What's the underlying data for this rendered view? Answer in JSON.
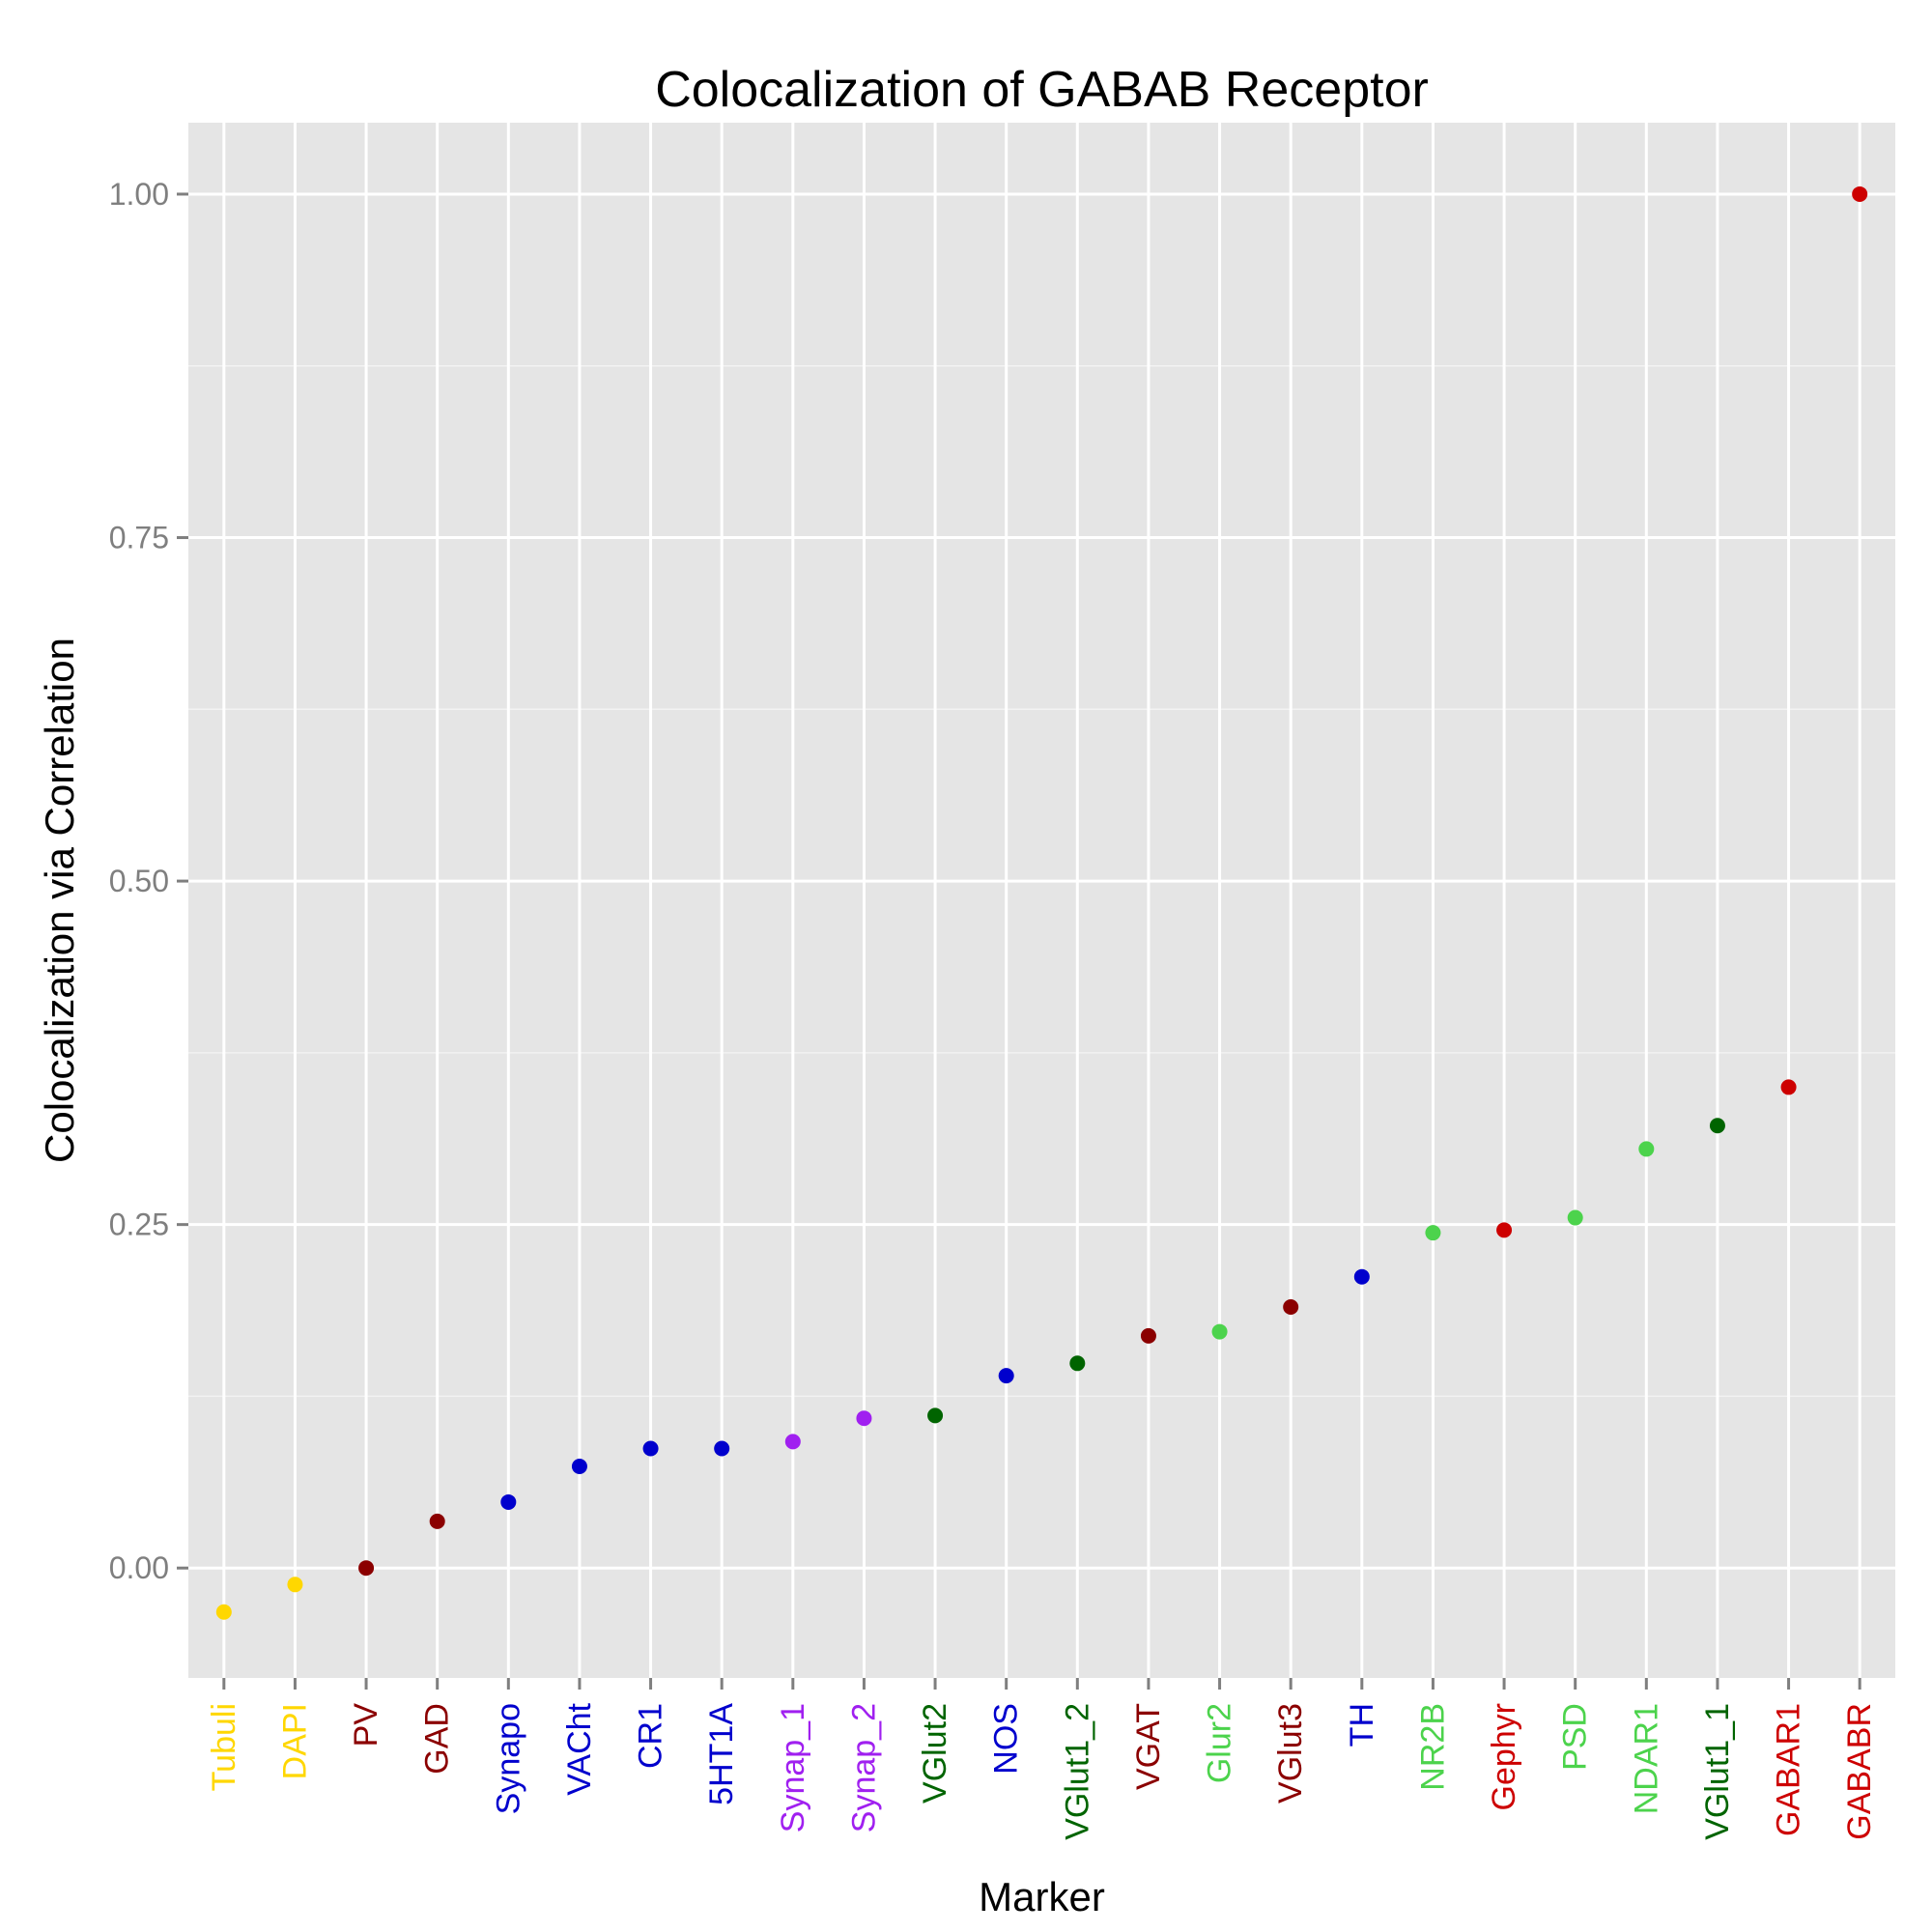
{
  "chart_data": {
    "type": "scatter",
    "title": "Colocalization of GABAB Receptor",
    "xlabel": "Marker",
    "ylabel": "Colocalization via Correlation",
    "ylim": [
      -0.08,
      1.052
    ],
    "yticks": [
      0.0,
      0.25,
      0.5,
      0.75,
      1.0
    ],
    "ytick_labels": [
      "0.00",
      "0.25",
      "0.50",
      "0.75",
      "1.00"
    ],
    "grid": true,
    "categories": [
      "Tubuli",
      "DAPI",
      "PV",
      "GAD",
      "Synapo",
      "VACht",
      "CR1",
      "5HT1A",
      "Synap_1",
      "Synap_2",
      "VGlut2",
      "NOS",
      "VGlut1_2",
      "VGAT",
      "Glur2",
      "VGlut3",
      "TH",
      "NR2B",
      "Gephyr",
      "PSD",
      "NDAR1",
      "VGlut1_1",
      "GABAR1",
      "GABABR"
    ],
    "values": [
      -0.032,
      -0.012,
      0.0,
      0.034,
      0.048,
      0.074,
      0.087,
      0.087,
      0.092,
      0.109,
      0.111,
      0.14,
      0.149,
      0.169,
      0.172,
      0.19,
      0.212,
      0.244,
      0.246,
      0.255,
      0.305,
      0.322,
      0.35,
      1.0
    ],
    "point_colors": [
      "#FFD700",
      "#FFD700",
      "#8B0000",
      "#8B0000",
      "#0000CD",
      "#0000CD",
      "#0000CD",
      "#0000CD",
      "#A020F0",
      "#A020F0",
      "#006400",
      "#0000CD",
      "#006400",
      "#8B0000",
      "#4CD34C",
      "#8B0000",
      "#0000CD",
      "#4CD34C",
      "#CD0000",
      "#4CD34C",
      "#4CD34C",
      "#006400",
      "#CD0000",
      "#CD0000"
    ]
  }
}
